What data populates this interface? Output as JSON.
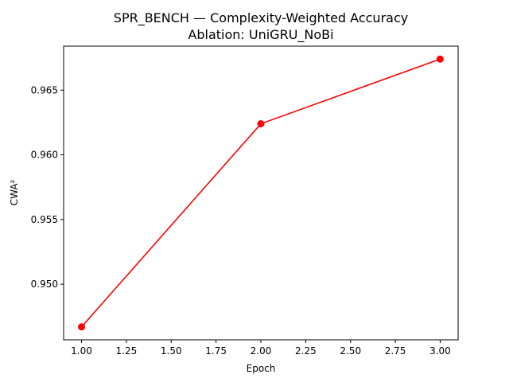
{
  "chart_data": {
    "type": "line",
    "title": "SPR_BENCH — Complexity-Weighted Accuracy",
    "subtitle": "Ablation: UniGRU_NoBi",
    "xlabel": "Epoch",
    "ylabel": "CWA²",
    "x": [
      1.0,
      2.0,
      3.0
    ],
    "series": [
      {
        "values": [
          0.9467,
          0.9624,
          0.9674
        ],
        "color": "#ff0000",
        "marker": "circle"
      }
    ],
    "xlim": [
      0.9,
      3.1
    ],
    "ylim": [
      0.9457,
      0.9684
    ],
    "xticks": [
      1.0,
      1.25,
      1.5,
      1.75,
      2.0,
      2.25,
      2.5,
      2.75,
      3.0
    ],
    "xtick_labels": [
      "1.00",
      "1.25",
      "1.50",
      "1.75",
      "2.00",
      "2.25",
      "2.50",
      "2.75",
      "3.00"
    ],
    "yticks": [
      0.95,
      0.955,
      0.96,
      0.965
    ],
    "ytick_labels": [
      "0.950",
      "0.955",
      "0.960",
      "0.965"
    ],
    "grid": false,
    "legend": false
  }
}
